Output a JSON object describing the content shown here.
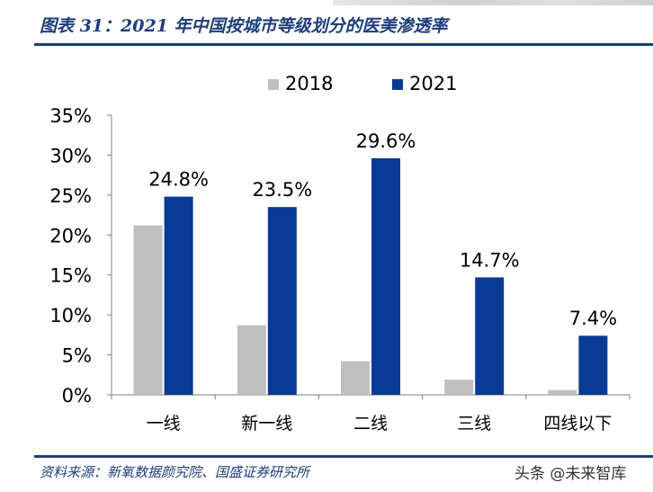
{
  "header": {
    "title": "图表 31：2021 年中国按城市等级划分的医美渗透率"
  },
  "footer": {
    "source": "资料来源：新氧数据颜究院、国盛证券研究所",
    "watermark": "头条 @未来智库"
  },
  "chart_data": {
    "type": "bar",
    "title": "",
    "xlabel": "",
    "ylabel": "",
    "categories": [
      "一线",
      "新一线",
      "二线",
      "三线",
      "四线以下"
    ],
    "series": [
      {
        "name": "2018",
        "values": [
          21.2,
          8.7,
          4.2,
          1.9,
          0.6
        ],
        "color": "#bfbfbf"
      },
      {
        "name": "2021",
        "values": [
          24.8,
          23.5,
          29.6,
          14.7,
          7.4
        ],
        "color": "#0b3a96"
      }
    ],
    "data_labels": [
      "24.8%",
      "23.5%",
      "29.6%",
      "14.7%",
      "7.4%"
    ],
    "yticks": [
      "0%",
      "5%",
      "10%",
      "15%",
      "20%",
      "25%",
      "30%",
      "35%"
    ],
    "ylim": [
      0,
      35
    ],
    "grid": false,
    "legend": "top-center"
  }
}
